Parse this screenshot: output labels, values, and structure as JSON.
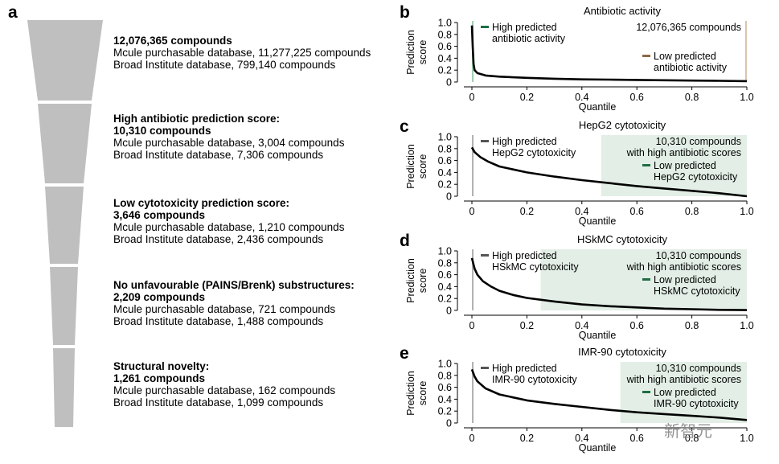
{
  "panel_a": {
    "letter": "a",
    "stages": [
      {
        "title": "12,076,365 compounds",
        "count": "",
        "lines": [
          "Mcule purchasable database, 11,277,225 compounds",
          "Broad Institute database, 799,140 compounds"
        ]
      },
      {
        "title": "High antibiotic prediction score:",
        "count": "10,310 compounds",
        "lines": [
          "Mcule purchasable database, 3,004 compounds",
          "Broad Institute database, 7,306 compounds"
        ]
      },
      {
        "title": "Low cytotoxicity prediction score:",
        "count": "3,646 compounds",
        "lines": [
          "Mcule purchasable database, 1,210 compounds",
          "Broad Institute database, 2,436 compounds"
        ]
      },
      {
        "title": "No unfavourable (PAINS/Brenk) substructures:",
        "count": "2,209 compounds",
        "lines": [
          "Mcule purchasable database, 721 compounds",
          "Broad Institute database, 1,488 compounds"
        ]
      },
      {
        "title": "Structural novelty:",
        "count": "1,261 compounds",
        "lines": [
          "Mcule purchasable database, 162 compounds",
          "Broad Institute database, 1,099 compounds"
        ]
      }
    ],
    "colors": {
      "funnel": "#bfbfbf"
    }
  },
  "chart_data": [
    {
      "letter": "b",
      "type": "line",
      "title": "Antibiotic activity",
      "xlabel": "Quantile",
      "ylabel": "Prediction score",
      "xlim": [
        0,
        1
      ],
      "ylim": [
        0,
        1
      ],
      "xticks": [
        "0",
        "0.2",
        "0.4",
        "0.6",
        "0.8",
        "1.0"
      ],
      "yticks": [
        "0",
        "0.2",
        "0.4",
        "0.6",
        "0.8",
        "1.0"
      ],
      "series": [
        {
          "name": "score",
          "x": [
            0,
            0.003,
            0.006,
            0.01,
            0.02,
            0.05,
            0.1,
            0.2,
            0.3,
            0.4,
            0.5,
            0.6,
            0.7,
            0.8,
            0.9,
            1.0
          ],
          "values": [
            0.95,
            0.6,
            0.3,
            0.2,
            0.15,
            0.11,
            0.09,
            0.07,
            0.055,
            0.045,
            0.04,
            0.035,
            0.03,
            0.025,
            0.02,
            0.015
          ]
        }
      ],
      "shade": {
        "from": 0.0,
        "to": 0.003,
        "color": "#cfe3d6"
      },
      "markers": [
        {
          "x": 0.003,
          "color": "#9fcfb0"
        },
        {
          "x": 0.997,
          "color": "#d7c4b0"
        }
      ],
      "legend": {
        "high": {
          "lines": [
            "High predicted",
            "antibiotic activity"
          ],
          "color": "#1f6e45"
        },
        "count": [
          "12,076,365 compounds"
        ],
        "low": {
          "lines": [
            "Low predicted",
            "antibiotic activity"
          ],
          "color": "#8b6a45"
        }
      }
    },
    {
      "letter": "c",
      "type": "line",
      "title": "HepG2 cytotoxicity",
      "xlabel": "Quantile",
      "ylabel": "Prediction score",
      "xlim": [
        0,
        1
      ],
      "ylim": [
        0,
        1
      ],
      "xticks": [
        "0",
        "0.2",
        "0.4",
        "0.6",
        "0.8",
        "1.0"
      ],
      "yticks": [
        "0",
        "0.2",
        "0.4",
        "0.6",
        "0.8",
        "1.0"
      ],
      "series": [
        {
          "name": "score",
          "x": [
            0,
            0.01,
            0.03,
            0.06,
            0.1,
            0.2,
            0.3,
            0.4,
            0.5,
            0.6,
            0.7,
            0.8,
            0.9,
            1.0
          ],
          "values": [
            0.82,
            0.74,
            0.66,
            0.58,
            0.5,
            0.4,
            0.33,
            0.27,
            0.22,
            0.17,
            0.13,
            0.09,
            0.05,
            0.0
          ]
        }
      ],
      "shade": {
        "from": 0.47,
        "to": 1.0,
        "color": "#e3efe6"
      },
      "markers": [
        {
          "x": 0.003,
          "color": "#b0b0b0"
        }
      ],
      "legend": {
        "high": {
          "lines": [
            "High predicted",
            "HepG2 cytotoxicity"
          ],
          "color": "#555555"
        },
        "count": [
          "10,310 compounds",
          "with high antibiotic scores"
        ],
        "low": {
          "lines": [
            "Low predicted",
            "HepG2 cytotoxicity"
          ],
          "color": "#1f6e45"
        }
      }
    },
    {
      "letter": "d",
      "type": "line",
      "title": "HSkMC cytotoxicity",
      "xlabel": "Quantile",
      "ylabel": "Prediction score",
      "xlim": [
        0,
        1
      ],
      "ylim": [
        0,
        1
      ],
      "xticks": [
        "0",
        "0.2",
        "0.4",
        "0.6",
        "0.8",
        "1.0"
      ],
      "yticks": [
        "0",
        "0.2",
        "0.4",
        "0.6",
        "0.8",
        "1.0"
      ],
      "series": [
        {
          "name": "score",
          "x": [
            0,
            0.01,
            0.02,
            0.04,
            0.07,
            0.1,
            0.15,
            0.2,
            0.3,
            0.4,
            0.5,
            0.6,
            0.7,
            0.8,
            0.9,
            1.0
          ],
          "values": [
            0.88,
            0.7,
            0.6,
            0.49,
            0.4,
            0.33,
            0.26,
            0.21,
            0.15,
            0.1,
            0.07,
            0.05,
            0.03,
            0.02,
            0.01,
            0.005
          ]
        }
      ],
      "shade": {
        "from": 0.25,
        "to": 1.0,
        "color": "#e3efe6"
      },
      "markers": [
        {
          "x": 0.003,
          "color": "#b0b0b0"
        }
      ],
      "legend": {
        "high": {
          "lines": [
            "High predicted",
            "HSkMC cytotoxicity"
          ],
          "color": "#555555"
        },
        "count": [
          "10,310 compounds",
          "with high antibiotic scores"
        ],
        "low": {
          "lines": [
            "Low predicted",
            "HSkMC cytotoxicity"
          ],
          "color": "#1f6e45"
        }
      }
    },
    {
      "letter": "e",
      "type": "line",
      "title": "IMR-90 cytotoxicity",
      "xlabel": "Quantile",
      "ylabel": "Prediction score",
      "xlim": [
        0,
        1
      ],
      "ylim": [
        0,
        1
      ],
      "xticks": [
        "0",
        "0.2",
        "0.4",
        "0.6",
        "0.8",
        "1.0"
      ],
      "yticks": [
        "0",
        "0.2",
        "0.4",
        "0.6",
        "0.8",
        "1.0"
      ],
      "series": [
        {
          "name": "score",
          "x": [
            0,
            0.01,
            0.02,
            0.05,
            0.1,
            0.2,
            0.3,
            0.4,
            0.5,
            0.6,
            0.7,
            0.8,
            0.9,
            1.0
          ],
          "values": [
            0.9,
            0.78,
            0.7,
            0.58,
            0.48,
            0.38,
            0.32,
            0.27,
            0.22,
            0.18,
            0.15,
            0.12,
            0.09,
            0.05
          ]
        }
      ],
      "shade": {
        "from": 0.54,
        "to": 1.0,
        "color": "#e3efe6"
      },
      "markers": [
        {
          "x": 0.003,
          "color": "#b0b0b0"
        }
      ],
      "legend": {
        "high": {
          "lines": [
            "High predicted",
            "IMR-90 cytotoxicity"
          ],
          "color": "#555555"
        },
        "count": [
          "10,310 compounds",
          "with high antibiotic scores"
        ],
        "low": {
          "lines": [
            "Low predicted",
            "IMR-90 cytotoxicity"
          ],
          "color": "#1f6e45"
        }
      }
    }
  ],
  "watermark": {
    "text": "新智元"
  }
}
